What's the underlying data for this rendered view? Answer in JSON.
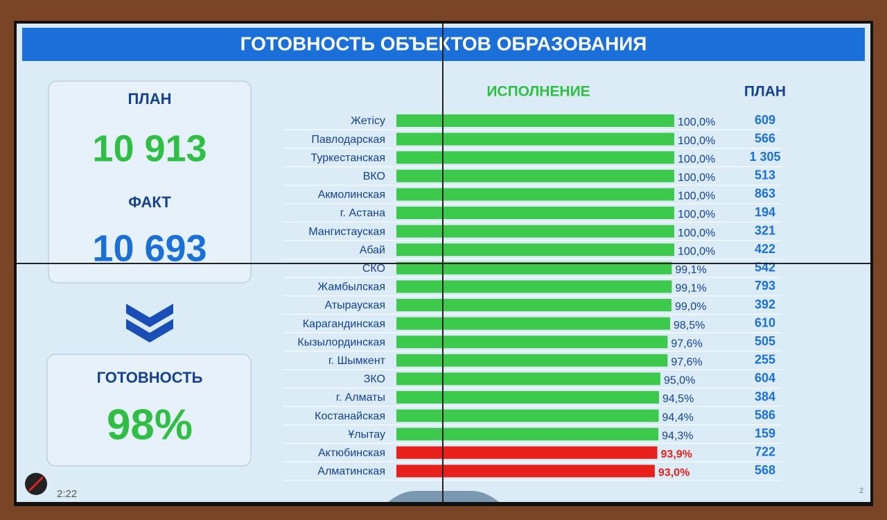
{
  "title": "ГОТОВНОСТЬ ОБЪЕКТОВ ОБРАЗОВАНИЯ",
  "summary": {
    "plan_label": "ПЛАН",
    "plan_value": "10 913",
    "fact_label": "ФАКТ",
    "fact_value": "10 693",
    "readiness_label": "ГОТОВНОСТЬ",
    "readiness_value": "98%"
  },
  "chart_data": {
    "type": "bar",
    "orientation": "horizontal",
    "value_header": "ИСПОЛНЕНИЕ",
    "plan_header": "ПЛАН",
    "categories": [
      "Жетісу",
      "Павлодарская",
      "Туркестанская",
      "ВКО",
      "Акмолинская",
      "г. Астана",
      "Мангистауская",
      "Абай",
      "СКО",
      "Жамбылская",
      "Атырауская",
      "Карагандинская",
      "Кызылординская",
      "г. Шымкент",
      "ЗКО",
      "г. Алматы",
      "Костанайская",
      "Ұлытау",
      "Актюбинская",
      "Алматинская"
    ],
    "values": [
      100.0,
      100.0,
      100.0,
      100.0,
      100.0,
      100.0,
      100.0,
      100.0,
      99.1,
      99.1,
      99.0,
      98.5,
      97.6,
      97.6,
      95.0,
      94.5,
      94.4,
      94.3,
      93.9,
      93.0
    ],
    "value_labels": [
      "100,0%",
      "100,0%",
      "100,0%",
      "100,0%",
      "100,0%",
      "100,0%",
      "100,0%",
      "100,0%",
      "99,1%",
      "99,1%",
      "99,0%",
      "98,5%",
      "97,6%",
      "97,6%",
      "95,0%",
      "94,5%",
      "94,4%",
      "94,3%",
      "93,9%",
      "93,0%"
    ],
    "colors": [
      "#3dc94b",
      "#3dc94b",
      "#3dc94b",
      "#3dc94b",
      "#3dc94b",
      "#3dc94b",
      "#3dc94b",
      "#3dc94b",
      "#3dc94b",
      "#3dc94b",
      "#3dc94b",
      "#3dc94b",
      "#3dc94b",
      "#3dc94b",
      "#3dc94b",
      "#3dc94b",
      "#3dc94b",
      "#3dc94b",
      "#e8201c",
      "#e8201c"
    ],
    "plan": [
      "609",
      "566",
      "1 305",
      "513",
      "863",
      "194",
      "321",
      "422",
      "542",
      "793",
      "392",
      "610",
      "505",
      "255",
      "604",
      "384",
      "586",
      "159",
      "722",
      "568"
    ],
    "xlim": [
      0,
      100
    ]
  },
  "footer": {
    "time": "2:22",
    "page": "2"
  }
}
